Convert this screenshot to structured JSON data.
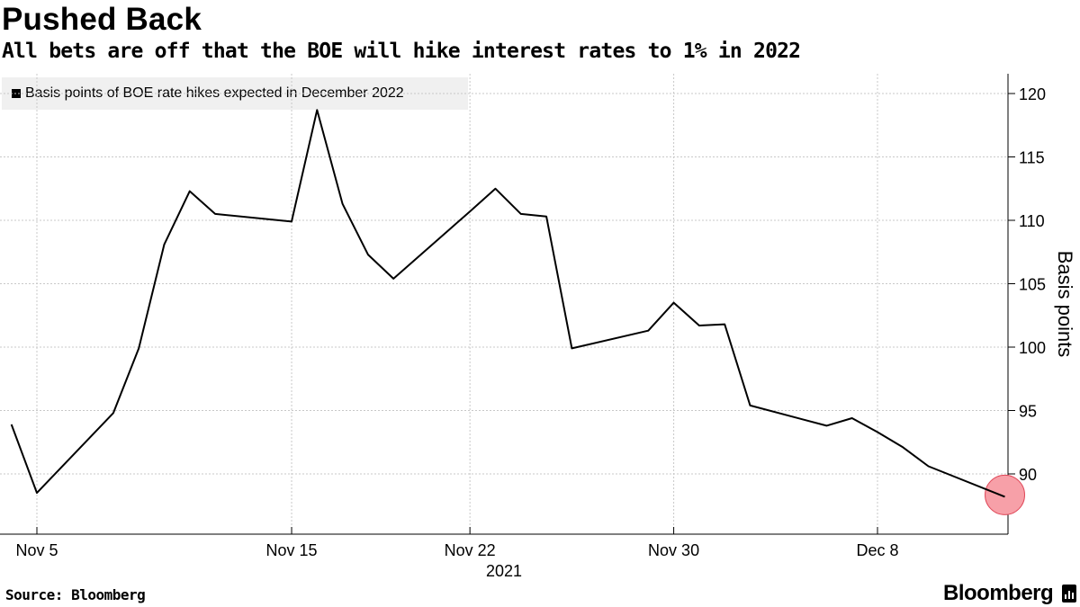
{
  "header": {
    "title": "Pushed Back",
    "subtitle": "All bets are off that the BOE will hike interest rates to 1% in 2022"
  },
  "legend": {
    "label": "Basis points of BOE rate hikes expected in December 2022"
  },
  "footer": {
    "source": "Source: Bloomberg",
    "brand": "Bloomberg"
  },
  "colors": {
    "line": "#000000",
    "grid": "#c8c8c8",
    "legend_bg": "#f0f0f0",
    "marker": "#f7a0a8",
    "marker_stroke": "#e0495a"
  },
  "chart_data": {
    "type": "line",
    "title": "Pushed Back",
    "subtitle": "All bets are off that the BOE will hike interest rates to 1% in 2022",
    "ylabel": "Basis points",
    "year_label": "2021",
    "ylim": [
      85.3,
      122.5
    ],
    "yticks": [
      90,
      95,
      100,
      105,
      110,
      115,
      120
    ],
    "xticks": [
      {
        "date": "2021-11-05",
        "label": "Nov 5"
      },
      {
        "date": "2021-11-15",
        "label": "Nov 15"
      },
      {
        "date": "2021-11-22",
        "label": "Nov 22"
      },
      {
        "date": "2021-11-30",
        "label": "Nov 30"
      },
      {
        "date": "2021-12-08",
        "label": "Dec 8"
      }
    ],
    "grid": true,
    "y_axis_side": "right",
    "legend_position": "top-left",
    "series": [
      {
        "name": "Basis points of BOE rate hikes expected in December 2022",
        "points": [
          [
            "2021-11-04",
            93.9
          ],
          [
            "2021-11-05",
            88.5
          ],
          [
            "2021-11-08",
            94.8
          ],
          [
            "2021-11-09",
            99.9
          ],
          [
            "2021-11-10",
            108.1
          ],
          [
            "2021-11-11",
            112.3
          ],
          [
            "2021-11-12",
            110.5
          ],
          [
            "2021-11-15",
            109.9
          ],
          [
            "2021-11-16",
            118.7
          ],
          [
            "2021-11-17",
            111.3
          ],
          [
            "2021-11-18",
            107.3
          ],
          [
            "2021-11-19",
            105.4
          ],
          [
            "2021-11-22",
            110.7
          ],
          [
            "2021-11-23",
            112.5
          ],
          [
            "2021-11-24",
            110.5
          ],
          [
            "2021-11-25",
            110.3
          ],
          [
            "2021-11-26",
            99.9
          ],
          [
            "2021-11-29",
            101.3
          ],
          [
            "2021-11-30",
            103.5
          ],
          [
            "2021-12-01",
            101.7
          ],
          [
            "2021-12-02",
            101.8
          ],
          [
            "2021-12-03",
            95.4
          ],
          [
            "2021-12-06",
            93.8
          ],
          [
            "2021-12-07",
            94.4
          ],
          [
            "2021-12-08",
            93.3
          ],
          [
            "2021-12-09",
            92.1
          ],
          [
            "2021-12-10",
            90.6
          ],
          [
            "2021-12-13",
            88.2
          ]
        ],
        "highlight_last": true
      }
    ]
  }
}
